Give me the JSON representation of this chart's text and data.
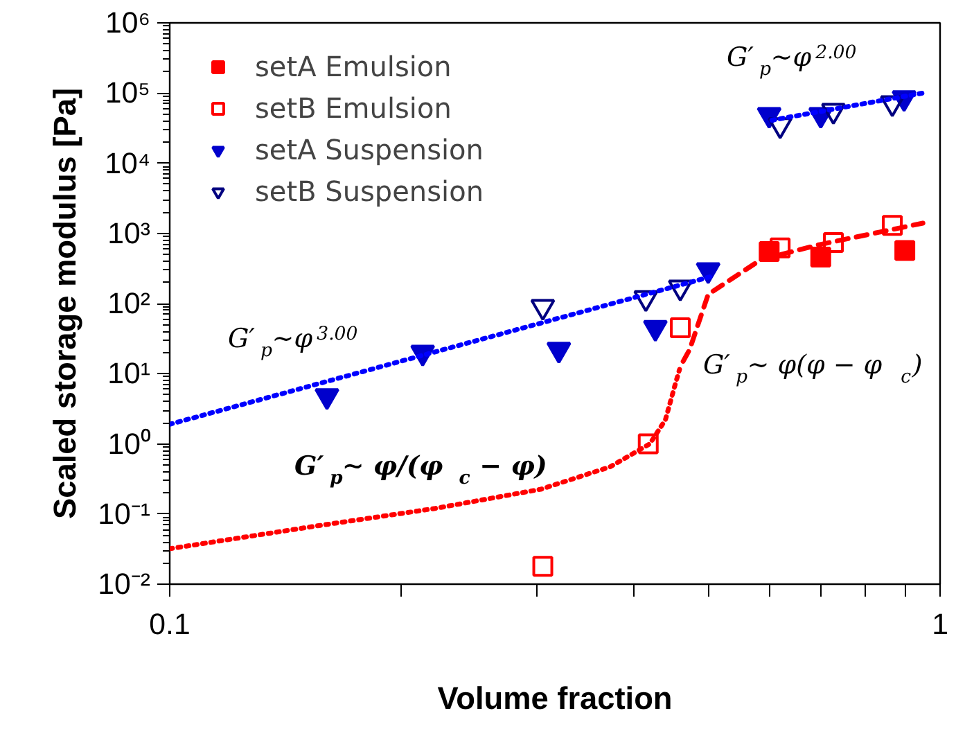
{
  "chart_data": {
    "type": "scatter",
    "xlabel": "Volume fraction",
    "ylabel": "Scaled storage modulus [Pa]",
    "log": "xy",
    "xlim": [
      0.1,
      1
    ],
    "ylim": [
      0.01,
      1000000
    ],
    "xticks": [
      {
        "value": 0.1,
        "label": "0.1"
      },
      {
        "value": 0.2,
        "label": null
      },
      {
        "value": 0.3,
        "label": null
      },
      {
        "value": 0.4,
        "label": null
      },
      {
        "value": 0.5,
        "label": null
      },
      {
        "value": 0.6,
        "label": null
      },
      {
        "value": 0.7,
        "label": null
      },
      {
        "value": 0.8,
        "label": null
      },
      {
        "value": 0.9,
        "label": null
      },
      {
        "value": 1,
        "label": "1"
      }
    ],
    "yticks": [
      {
        "value": 0.01,
        "label": "10⁻²"
      },
      {
        "value": 0.1,
        "label": "10⁻¹"
      },
      {
        "value": 1,
        "label": "10⁰"
      },
      {
        "value": 10,
        "label": "10¹"
      },
      {
        "value": 100,
        "label": "10²"
      },
      {
        "value": 1000,
        "label": "10³"
      },
      {
        "value": 10000,
        "label": "10⁴"
      },
      {
        "value": 100000,
        "label": "10⁵"
      },
      {
        "value": 1000000,
        "label": "10⁶"
      }
    ],
    "grid": false,
    "legend": "top left",
    "series": [
      {
        "name": "setA Emulsion",
        "color": "#ff0000",
        "marker": "square",
        "x": [
          0.6,
          0.7,
          0.9
        ],
        "values": [
          550,
          460,
          570
        ]
      },
      {
        "name": "setB Emulsion",
        "color": "#ff0000",
        "marker": "square_open",
        "x": [
          0.305,
          0.418,
          0.46,
          0.62,
          0.727,
          0.867
        ],
        "values": [
          0.018,
          1.0,
          45,
          620,
          740,
          1300
        ]
      },
      {
        "name": "setA Suspension",
        "color": "#0000cc",
        "marker": "triangle_down",
        "x": [
          0.16,
          0.213,
          0.32,
          0.427,
          0.5,
          0.6,
          0.7,
          0.898
        ],
        "values": [
          4.8,
          20,
          22,
          45,
          300,
          49000,
          49000,
          85000
        ]
      },
      {
        "name": "setB Suspension",
        "color": "#000080",
        "marker": "triangle_down_open",
        "x": [
          0.305,
          0.415,
          0.46,
          0.62,
          0.727,
          0.867
        ],
        "values": [
          90,
          120,
          170,
          35000,
          56000,
          72000
        ]
      },
      {
        "type": "line",
        "color": "#0000ff",
        "line_style": "dotted",
        "x": [
          0.1,
          0.3,
          0.51
        ],
        "values": [
          1.9,
          51,
          250
        ]
      },
      {
        "type": "line",
        "color": "#0000ff",
        "line_style": "dotted",
        "x": [
          0.605,
          0.95
        ],
        "values": [
          41000,
          100000
        ]
      },
      {
        "type": "line",
        "color": "#ff0000",
        "line_style": "dotted",
        "x": [
          0.1,
          0.153,
          0.221,
          0.303,
          0.373,
          0.42,
          0.44,
          0.453,
          0.459
        ],
        "values": [
          0.032,
          0.066,
          0.12,
          0.225,
          0.47,
          1.0,
          2.2,
          7,
          11.5
        ]
      },
      {
        "type": "line",
        "color": "#ff0000",
        "line_style": "dashed",
        "x": [
          0.464,
          0.473,
          0.5,
          0.585,
          0.697,
          0.95
        ],
        "values": [
          15,
          22,
          135,
          420,
          690,
          1400
        ]
      }
    ],
    "annotations": [
      "G′$_{p}$∼φ$^{2.00}$",
      "G′$_{p}$∼φ$^{3.00}$",
      "G′$_{p}$∼ φ(φ − φ$_{c}$)",
      "G′$_{p}$∼ φ/(φ$_{c}$ − φ)"
    ]
  }
}
